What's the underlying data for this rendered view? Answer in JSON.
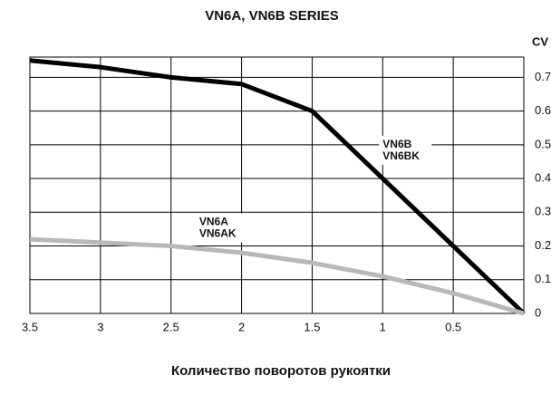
{
  "chart_data": {
    "type": "line",
    "title": "VN6A, VN6B SERIES",
    "x_label": "Количество поворотов рукоятки",
    "y_label": "CV",
    "x": [
      3.5,
      3,
      2.5,
      2,
      1.5,
      1,
      0.5,
      0
    ],
    "xlim": [
      3.5,
      0
    ],
    "xticks": [
      3.5,
      3,
      2.5,
      2,
      1.5,
      1,
      0.5
    ],
    "ylim": [
      0,
      0.76
    ],
    "yticks": [
      0,
      0.1,
      0.2,
      0.3,
      0.4,
      0.5,
      0.6,
      0.7
    ],
    "y_axis_side": "right",
    "grid": true,
    "series": [
      {
        "labels": [
          "VN6B",
          "VN6BK"
        ],
        "color": "#000000",
        "values": [
          0.75,
          0.73,
          0.7,
          0.68,
          0.6,
          0.4,
          0.2,
          0
        ]
      },
      {
        "labels": [
          "VN6A",
          "VN6AK"
        ],
        "color": "#b8b8b8",
        "values": [
          0.22,
          0.21,
          0.2,
          0.18,
          0.15,
          0.11,
          0.06,
          0
        ]
      }
    ]
  }
}
